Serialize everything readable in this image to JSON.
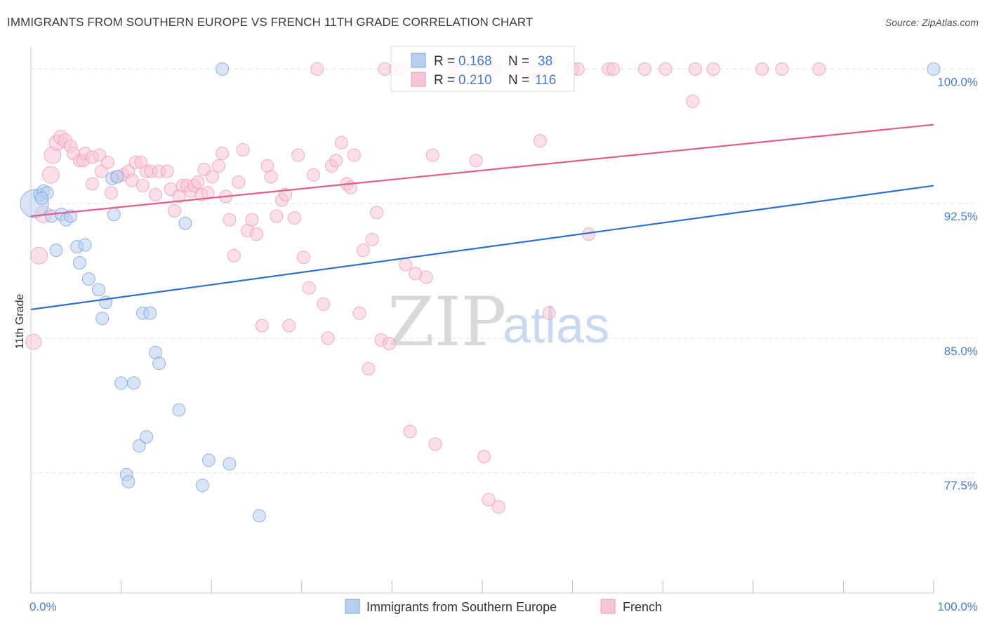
{
  "header": {
    "title": "IMMIGRANTS FROM SOUTHERN EUROPE VS FRENCH 11TH GRADE CORRELATION CHART",
    "source": "Source: ZipAtlas.com"
  },
  "watermark": {
    "zip": "ZIP",
    "atlas": "atlas"
  },
  "legend": {
    "r_label": "R =",
    "n_label": "N =",
    "series": [
      {
        "r": "0.168",
        "n": "38"
      },
      {
        "r": "0.210",
        "n": "116"
      }
    ]
  },
  "chart_data": {
    "type": "scatter",
    "title": "IMMIGRANTS FROM SOUTHERN EUROPE VS FRENCH 11TH GRADE CORRELATION CHART",
    "xlabel": "",
    "ylabel": "11th Grade",
    "xlim": [
      0,
      100
    ],
    "ylim": [
      70.8,
      101.5
    ],
    "x_tick_labels": [
      "0.0%",
      "100.0%"
    ],
    "y_ticks": [
      {
        "value": 100.0,
        "label": "100.0%"
      },
      {
        "value": 92.5,
        "label": "92.5%"
      },
      {
        "value": 85.0,
        "label": "85.0%"
      },
      {
        "value": 77.5,
        "label": "77.5%"
      }
    ],
    "grid": true,
    "legend_position": "top-center",
    "series": [
      {
        "name": "Immigrants from Southern Europe",
        "color": "#7ba3e0",
        "fill": "#b9cff0",
        "trend_color": "#2f6fd0",
        "trend": [
          [
            0,
            86.6
          ],
          [
            100,
            93.5
          ]
        ],
        "points": [
          [
            0.4,
            92.5,
            20
          ],
          [
            1.0,
            93.0,
            9
          ],
          [
            1.4,
            93.2,
            9
          ],
          [
            1.8,
            93.1,
            9
          ],
          [
            2.3,
            91.8,
            9
          ],
          [
            2.8,
            89.9,
            9
          ],
          [
            3.4,
            91.9,
            9
          ],
          [
            3.9,
            91.6,
            9
          ],
          [
            4.4,
            91.8,
            9
          ],
          [
            5.1,
            90.1,
            9
          ],
          [
            5.4,
            89.2,
            9
          ],
          [
            6.0,
            90.2,
            9
          ],
          [
            6.4,
            88.3,
            9
          ],
          [
            7.5,
            87.7,
            9
          ],
          [
            7.9,
            86.1,
            9
          ],
          [
            8.3,
            87.0,
            9
          ],
          [
            9.0,
            93.9,
            9
          ],
          [
            9.2,
            91.9,
            9
          ],
          [
            9.6,
            94.0,
            9
          ],
          [
            10.0,
            82.5,
            9
          ],
          [
            10.6,
            77.4,
            9
          ],
          [
            10.8,
            77.0,
            9
          ],
          [
            11.4,
            82.5,
            9
          ],
          [
            12.0,
            79.0,
            9
          ],
          [
            12.4,
            86.4,
            9
          ],
          [
            12.8,
            79.5,
            9
          ],
          [
            13.2,
            86.4,
            9
          ],
          [
            13.8,
            84.2,
            9
          ],
          [
            14.2,
            83.6,
            9
          ],
          [
            16.4,
            81.0,
            9
          ],
          [
            17.1,
            91.4,
            9
          ],
          [
            19.0,
            76.8,
            9
          ],
          [
            19.7,
            78.2,
            9
          ],
          [
            21.2,
            100.0,
            9
          ],
          [
            22.0,
            78.0,
            9
          ],
          [
            25.3,
            75.1,
            9
          ],
          [
            100.0,
            100.0,
            9
          ],
          [
            1.2,
            92.8,
            9
          ]
        ]
      },
      {
        "name": "French",
        "color": "#ec9bb6",
        "fill": "#f7c6d6",
        "trend_color": "#e0608c",
        "trend": [
          [
            0,
            91.8
          ],
          [
            100,
            96.9
          ]
        ],
        "points": [
          [
            0.3,
            84.8,
            11
          ],
          [
            0.9,
            89.6,
            12
          ],
          [
            1.4,
            91.9,
            12
          ],
          [
            2.2,
            94.1,
            12
          ],
          [
            2.4,
            95.2,
            12
          ],
          [
            2.9,
            95.9,
            11
          ],
          [
            3.3,
            96.2,
            10
          ],
          [
            3.8,
            96.0,
            10
          ],
          [
            4.4,
            95.7,
            9
          ],
          [
            4.7,
            95.3,
            9
          ],
          [
            5.4,
            94.9,
            9
          ],
          [
            5.8,
            94.9,
            9
          ],
          [
            6.0,
            95.3,
            9
          ],
          [
            6.8,
            95.1,
            9
          ],
          [
            6.8,
            93.6,
            9
          ],
          [
            7.6,
            95.2,
            9
          ],
          [
            7.8,
            94.3,
            9
          ],
          [
            8.5,
            94.8,
            9
          ],
          [
            8.9,
            93.1,
            9
          ],
          [
            9.5,
            94.0,
            9
          ],
          [
            10.2,
            94.1,
            9
          ],
          [
            10.8,
            94.3,
            9
          ],
          [
            11.2,
            93.8,
            9
          ],
          [
            11.6,
            94.8,
            9
          ],
          [
            12.2,
            94.8,
            9
          ],
          [
            12.4,
            93.5,
            9
          ],
          [
            12.8,
            94.3,
            9
          ],
          [
            13.3,
            94.3,
            9
          ],
          [
            13.8,
            93.0,
            9
          ],
          [
            14.2,
            94.3,
            9
          ],
          [
            15.1,
            94.3,
            9
          ],
          [
            15.5,
            93.3,
            9
          ],
          [
            15.9,
            92.1,
            9
          ],
          [
            16.4,
            92.9,
            9
          ],
          [
            16.8,
            93.5,
            9
          ],
          [
            17.3,
            93.5,
            9
          ],
          [
            17.7,
            93.2,
            9
          ],
          [
            18.1,
            93.5,
            9
          ],
          [
            18.5,
            93.7,
            9
          ],
          [
            18.9,
            93.0,
            9
          ],
          [
            19.2,
            94.4,
            9
          ],
          [
            19.6,
            93.1,
            9
          ],
          [
            20.1,
            94.0,
            9
          ],
          [
            20.8,
            94.6,
            9
          ],
          [
            21.2,
            95.3,
            9
          ],
          [
            21.6,
            92.9,
            9
          ],
          [
            22.0,
            91.6,
            9
          ],
          [
            22.5,
            89.6,
            9
          ],
          [
            23.0,
            93.7,
            9
          ],
          [
            23.5,
            95.5,
            9
          ],
          [
            24.0,
            91.0,
            9
          ],
          [
            24.5,
            91.6,
            9
          ],
          [
            25.0,
            90.8,
            9
          ],
          [
            25.6,
            85.7,
            9
          ],
          [
            26.2,
            94.6,
            9
          ],
          [
            26.6,
            94.0,
            9
          ],
          [
            27.2,
            91.8,
            9
          ],
          [
            27.8,
            92.7,
            9
          ],
          [
            28.2,
            93.0,
            9
          ],
          [
            28.6,
            85.7,
            9
          ],
          [
            29.2,
            91.7,
            9
          ],
          [
            29.6,
            95.2,
            9
          ],
          [
            30.2,
            89.5,
            9
          ],
          [
            30.8,
            87.8,
            9
          ],
          [
            31.3,
            94.1,
            9
          ],
          [
            31.7,
            100.0,
            9
          ],
          [
            32.4,
            86.9,
            9
          ],
          [
            32.9,
            85.0,
            9
          ],
          [
            33.3,
            94.6,
            9
          ],
          [
            33.8,
            94.9,
            9
          ],
          [
            34.4,
            95.9,
            9
          ],
          [
            35.0,
            93.6,
            9
          ],
          [
            35.4,
            93.4,
            9
          ],
          [
            35.8,
            95.2,
            9
          ],
          [
            36.4,
            86.4,
            9
          ],
          [
            36.8,
            89.9,
            9
          ],
          [
            37.4,
            83.3,
            9
          ],
          [
            37.8,
            90.5,
            9
          ],
          [
            38.3,
            92.0,
            9
          ],
          [
            38.8,
            84.9,
            9
          ],
          [
            39.2,
            100.0,
            9
          ],
          [
            39.7,
            84.7,
            9
          ],
          [
            40.4,
            100.0,
            9
          ],
          [
            41.0,
            100.0,
            9
          ],
          [
            41.5,
            89.1,
            9
          ],
          [
            42.0,
            79.8,
            9
          ],
          [
            42.6,
            88.6,
            9
          ],
          [
            43.3,
            100.0,
            9
          ],
          [
            43.8,
            88.4,
            9
          ],
          [
            44.5,
            95.2,
            9
          ],
          [
            44.8,
            79.1,
            9
          ],
          [
            47.0,
            100.0,
            9
          ],
          [
            49.0,
            100.0,
            9
          ],
          [
            49.3,
            94.9,
            9
          ],
          [
            50.2,
            78.4,
            9
          ],
          [
            50.7,
            76.0,
            9
          ],
          [
            51.5,
            100.0,
            9
          ],
          [
            51.8,
            75.6,
            9
          ],
          [
            54.0,
            100.0,
            9
          ],
          [
            55.0,
            100.0,
            9
          ],
          [
            56.4,
            96.0,
            9
          ],
          [
            56.8,
            100.0,
            9
          ],
          [
            57.4,
            86.4,
            9
          ],
          [
            60.0,
            100.0,
            9
          ],
          [
            60.6,
            100.0,
            9
          ],
          [
            61.8,
            90.8,
            9
          ],
          [
            64.0,
            100.0,
            9
          ],
          [
            64.5,
            100.0,
            9
          ],
          [
            68.0,
            100.0,
            9
          ],
          [
            70.3,
            100.0,
            9
          ],
          [
            73.3,
            98.2,
            9
          ],
          [
            73.6,
            100.0,
            9
          ],
          [
            75.6,
            100.0,
            9
          ],
          [
            81.0,
            100.0,
            9
          ],
          [
            83.2,
            100.0,
            9
          ],
          [
            87.3,
            100.0,
            9
          ]
        ]
      }
    ]
  }
}
